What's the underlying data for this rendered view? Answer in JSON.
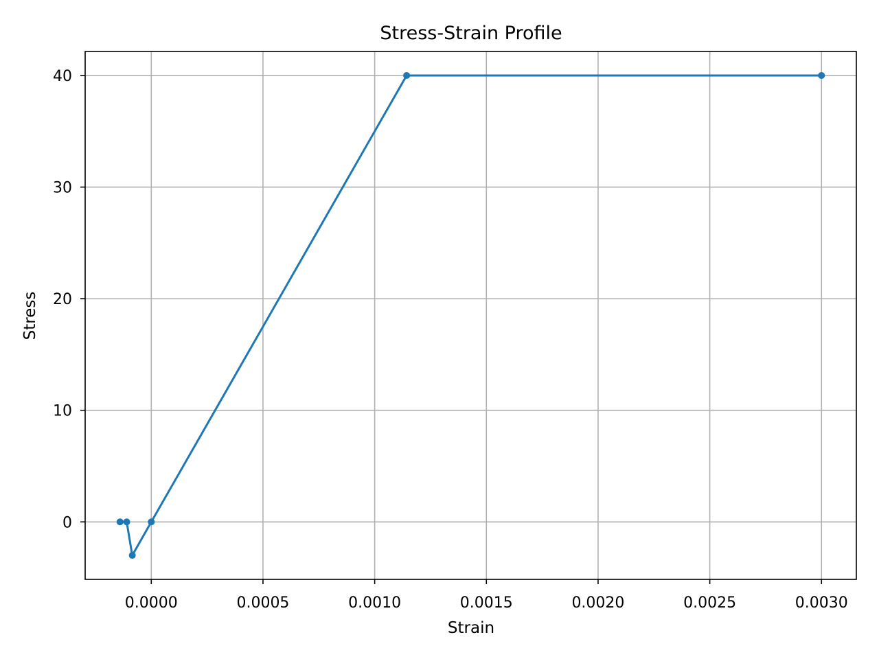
{
  "chart_data": {
    "type": "line",
    "title": "Stress-Strain Profile",
    "xlabel": "Strain",
    "ylabel": "Stress",
    "xlim": [
      -0.000296,
      0.003156
    ],
    "ylim": [
      -5.15,
      42.15
    ],
    "xticks": [
      0.0,
      0.0005,
      0.001,
      0.0015,
      0.002,
      0.0025,
      0.003
    ],
    "xtick_labels": [
      "0.0000",
      "0.0005",
      "0.0010",
      "0.0015",
      "0.0020",
      "0.0025",
      "0.0030"
    ],
    "yticks": [
      0,
      10,
      20,
      30,
      40
    ],
    "ytick_labels": [
      "0",
      "10",
      "20",
      "30",
      "40"
    ],
    "grid": true,
    "color": "#1f77b4",
    "series": [
      {
        "x": [
          -0.00014,
          -0.00011,
          -8.5e-05,
          0.0,
          0.001143,
          0.003
        ],
        "y": [
          0,
          0,
          -3,
          0,
          40,
          40
        ]
      }
    ]
  }
}
